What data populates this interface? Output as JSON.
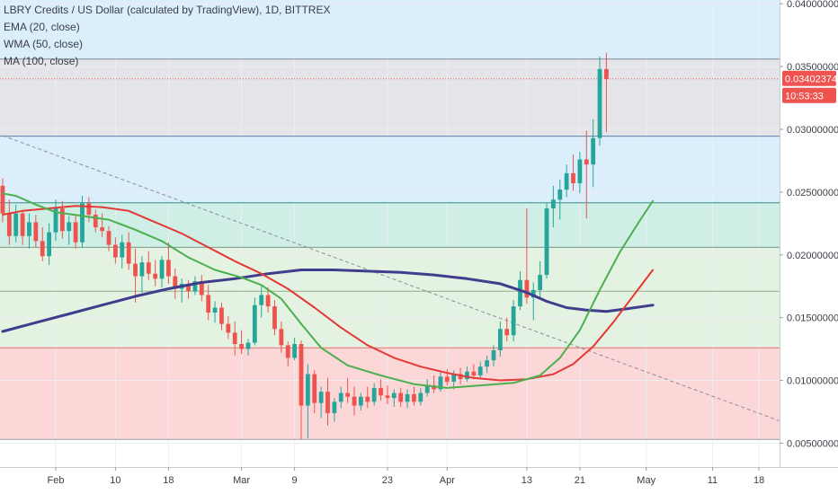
{
  "header": {
    "symbol_line": "LBRY Credits / US Dollar (calculated by TradingView), 1D, BITTREX",
    "indicators": [
      "EMA (20, close)",
      "WMA (50, close)",
      "MA (100, close)"
    ]
  },
  "price_label": {
    "value": "0.03402374",
    "countdown": "10:53:33",
    "color": "#ef5350"
  },
  "colors": {
    "up": "#26a69a",
    "down": "#ef5350",
    "ema": "#4caf50",
    "wma": "#e53935",
    "ma": "#3f3d8c",
    "zone_blue": "#dbeefc",
    "zone_gray": "#e4e5e8",
    "zone_teal": "#cfeee6",
    "zone_green": "#e3f2e1",
    "zone_red": "#fbd7d7",
    "grid": "#eceef2"
  },
  "chart_data": {
    "type": "candlestick",
    "title": "LBRY Credits / US Dollar (calculated by TradingView), 1D, BITTREX",
    "y_ticks": [
      "0.04000000",
      "0.03500000",
      "0.03000000",
      "0.02500000",
      "0.02000000",
      "0.01500000",
      "0.01000000",
      "0.00500000"
    ],
    "y_tick_values": [
      0.04,
      0.035,
      0.03,
      0.025,
      0.02,
      0.015,
      0.01,
      0.005
    ],
    "ylim": [
      0.0031,
      0.0403
    ],
    "x_ticks": [
      {
        "label": "Feb",
        "day": 31
      },
      {
        "label": "10",
        "day": 40
      },
      {
        "label": "18",
        "day": 48
      },
      {
        "label": "Mar",
        "day": 59
      },
      {
        "label": "9",
        "day": 67
      },
      {
        "label": "23",
        "day": 81
      },
      {
        "label": "Apr",
        "day": 90
      },
      {
        "label": "13",
        "day": 102
      },
      {
        "label": "21",
        "day": 110
      },
      {
        "label": "May",
        "day": 120
      },
      {
        "label": "11",
        "day": 130
      },
      {
        "label": "18",
        "day": 137
      }
    ],
    "start_day": 23,
    "x_range_days": [
      22.6,
      140.1
    ],
    "last_price": 0.03402374,
    "levels": [
      0.0356,
      0.02945,
      0.02415,
      0.0206,
      0.0171,
      0.0126,
      0.0053
    ],
    "zones": [
      {
        "from": 0.0356,
        "to": 0.0403,
        "color": "zone_blue"
      },
      {
        "from": 0.02945,
        "to": 0.0356,
        "color": "zone_gray"
      },
      {
        "from": 0.02415,
        "to": 0.02945,
        "color": "zone_blue"
      },
      {
        "from": 0.0206,
        "to": 0.02415,
        "color": "zone_teal"
      },
      {
        "from": 0.0126,
        "to": 0.0206,
        "color": "zone_green"
      },
      {
        "from": 0.0053,
        "to": 0.0126,
        "color": "zone_red"
      }
    ],
    "trendline": {
      "from_day": 23,
      "from_value": 0.0295,
      "to_day": 140,
      "to_value": 0.0068
    },
    "candles": [
      [
        0.0255,
        0.0261,
        0.0226,
        0.0233
      ],
      [
        0.0233,
        0.0244,
        0.0208,
        0.0215
      ],
      [
        0.0215,
        0.024,
        0.021,
        0.0233
      ],
      [
        0.0233,
        0.0236,
        0.0208,
        0.0215
      ],
      [
        0.0215,
        0.0233,
        0.0205,
        0.0226
      ],
      [
        0.0226,
        0.0232,
        0.0206,
        0.0211
      ],
      [
        0.0211,
        0.0222,
        0.0195,
        0.0199
      ],
      [
        0.0199,
        0.0225,
        0.0192,
        0.0218
      ],
      [
        0.0218,
        0.0244,
        0.0211,
        0.0237
      ],
      [
        0.0237,
        0.0243,
        0.0213,
        0.0219
      ],
      [
        0.0219,
        0.0231,
        0.0208,
        0.0226
      ],
      [
        0.0226,
        0.0232,
        0.0205,
        0.021
      ],
      [
        0.021,
        0.0247,
        0.0206,
        0.0241
      ],
      [
        0.0241,
        0.0246,
        0.0226,
        0.0232
      ],
      [
        0.0232,
        0.0236,
        0.0218,
        0.0222
      ],
      [
        0.0222,
        0.0233,
        0.0214,
        0.0219
      ],
      [
        0.0219,
        0.0223,
        0.0203,
        0.0208
      ],
      [
        0.0208,
        0.0214,
        0.0193,
        0.0198
      ],
      [
        0.0198,
        0.0216,
        0.0189,
        0.021
      ],
      [
        0.021,
        0.0218,
        0.0188,
        0.0193
      ],
      [
        0.0193,
        0.0205,
        0.0162,
        0.0183
      ],
      [
        0.0183,
        0.0199,
        0.017,
        0.0194
      ],
      [
        0.0194,
        0.0203,
        0.018,
        0.0185
      ],
      [
        0.0185,
        0.0196,
        0.0175,
        0.0181
      ],
      [
        0.0181,
        0.0199,
        0.0174,
        0.0196
      ],
      [
        0.0196,
        0.021,
        0.0177,
        0.0183
      ],
      [
        0.0183,
        0.0189,
        0.0165,
        0.0173
      ],
      [
        0.0173,
        0.0181,
        0.0162,
        0.0177
      ],
      [
        0.0177,
        0.018,
        0.0165,
        0.0171
      ],
      [
        0.0171,
        0.0183,
        0.0168,
        0.0179
      ],
      [
        0.0179,
        0.0184,
        0.0163,
        0.0168
      ],
      [
        0.0168,
        0.0176,
        0.0148,
        0.0154
      ],
      [
        0.0154,
        0.0163,
        0.0146,
        0.0158
      ],
      [
        0.0158,
        0.0162,
        0.014,
        0.0145
      ],
      [
        0.0145,
        0.0151,
        0.0133,
        0.0138
      ],
      [
        0.0138,
        0.0147,
        0.012,
        0.0129
      ],
      [
        0.0129,
        0.014,
        0.0121,
        0.0125
      ],
      [
        0.0125,
        0.0133,
        0.012,
        0.013
      ],
      [
        0.013,
        0.0166,
        0.0128,
        0.016
      ],
      [
        0.016,
        0.0175,
        0.015,
        0.0168
      ],
      [
        0.0168,
        0.0174,
        0.0154,
        0.0159
      ],
      [
        0.0159,
        0.0164,
        0.0136,
        0.0141
      ],
      [
        0.0141,
        0.0147,
        0.0122,
        0.0128
      ],
      [
        0.0128,
        0.0131,
        0.0111,
        0.0118
      ],
      [
        0.0118,
        0.0134,
        0.0116,
        0.0129
      ],
      [
        0.0129,
        0.0132,
        0.0053,
        0.008
      ],
      [
        0.008,
        0.0113,
        0.0054,
        0.0105
      ],
      [
        0.0105,
        0.0108,
        0.0074,
        0.0082
      ],
      [
        0.0082,
        0.0095,
        0.007,
        0.0091
      ],
      [
        0.0091,
        0.0102,
        0.0064,
        0.0074
      ],
      [
        0.0074,
        0.0086,
        0.0067,
        0.0083
      ],
      [
        0.0083,
        0.0095,
        0.0078,
        0.009
      ],
      [
        0.009,
        0.0102,
        0.0082,
        0.0087
      ],
      [
        0.0087,
        0.0095,
        0.0072,
        0.008
      ],
      [
        0.008,
        0.009,
        0.0076,
        0.0087
      ],
      [
        0.0087,
        0.0095,
        0.0078,
        0.0083
      ],
      [
        0.0083,
        0.0098,
        0.008,
        0.0094
      ],
      [
        0.0094,
        0.0101,
        0.0084,
        0.0088
      ],
      [
        0.0088,
        0.0096,
        0.0081,
        0.0086
      ],
      [
        0.0086,
        0.0093,
        0.0079,
        0.009
      ],
      [
        0.009,
        0.0094,
        0.0079,
        0.0083
      ],
      [
        0.0083,
        0.0093,
        0.0078,
        0.0089
      ],
      [
        0.0089,
        0.0095,
        0.008,
        0.0083
      ],
      [
        0.0083,
        0.0094,
        0.008,
        0.009
      ],
      [
        0.009,
        0.0101,
        0.0087,
        0.0096
      ],
      [
        0.0096,
        0.0104,
        0.009,
        0.0093
      ],
      [
        0.0093,
        0.0107,
        0.0091,
        0.0103
      ],
      [
        0.0103,
        0.0109,
        0.0096,
        0.0099
      ],
      [
        0.0099,
        0.0108,
        0.0093,
        0.0105
      ],
      [
        0.0105,
        0.011,
        0.0097,
        0.0101
      ],
      [
        0.0101,
        0.0111,
        0.0099,
        0.0107
      ],
      [
        0.0107,
        0.0113,
        0.0101,
        0.0104
      ],
      [
        0.0104,
        0.0115,
        0.0102,
        0.0111
      ],
      [
        0.0111,
        0.012,
        0.0106,
        0.0116
      ],
      [
        0.0116,
        0.0128,
        0.0111,
        0.0124
      ],
      [
        0.0124,
        0.0147,
        0.0119,
        0.0141
      ],
      [
        0.0141,
        0.015,
        0.0131,
        0.0136
      ],
      [
        0.0136,
        0.0164,
        0.0131,
        0.0159
      ],
      [
        0.0159,
        0.0187,
        0.0156,
        0.018
      ],
      [
        0.018,
        0.0237,
        0.0161,
        0.0166
      ],
      [
        0.0166,
        0.0178,
        0.0148,
        0.0172
      ],
      [
        0.0172,
        0.0195,
        0.0166,
        0.0184
      ],
      [
        0.0184,
        0.0241,
        0.0181,
        0.0237
      ],
      [
        0.0237,
        0.0255,
        0.0222,
        0.0244
      ],
      [
        0.0244,
        0.026,
        0.0228,
        0.0252
      ],
      [
        0.0252,
        0.0272,
        0.0246,
        0.0265
      ],
      [
        0.0265,
        0.028,
        0.0251,
        0.0257
      ],
      [
        0.0257,
        0.0282,
        0.0249,
        0.0276
      ],
      [
        0.0276,
        0.0299,
        0.0229,
        0.0272
      ],
      [
        0.0272,
        0.0308,
        0.0254,
        0.0293
      ],
      [
        0.0293,
        0.0358,
        0.0287,
        0.0348
      ],
      [
        0.0348,
        0.0361,
        0.0298,
        0.034
      ]
    ],
    "ema20": [
      [
        23,
        0.0249
      ],
      [
        25,
        0.0247
      ],
      [
        28,
        0.024
      ],
      [
        31,
        0.0234
      ],
      [
        35,
        0.0231
      ],
      [
        39,
        0.0228
      ],
      [
        43,
        0.022
      ],
      [
        47,
        0.0211
      ],
      [
        51,
        0.0198
      ],
      [
        55,
        0.0188
      ],
      [
        59,
        0.0182
      ],
      [
        62,
        0.0176
      ],
      [
        65,
        0.0165
      ],
      [
        68,
        0.0145
      ],
      [
        71,
        0.0126
      ],
      [
        75,
        0.0112
      ],
      [
        80,
        0.0104
      ],
      [
        85,
        0.0097
      ],
      [
        90,
        0.0094
      ],
      [
        95,
        0.0096
      ],
      [
        100,
        0.0098
      ],
      [
        104,
        0.0104
      ],
      [
        107,
        0.0118
      ],
      [
        110,
        0.014
      ],
      [
        113,
        0.0172
      ],
      [
        116,
        0.0202
      ],
      [
        119,
        0.0227
      ],
      [
        121,
        0.0243
      ]
    ],
    "wma50": [
      [
        23,
        0.0232
      ],
      [
        26,
        0.0235
      ],
      [
        30,
        0.0237
      ],
      [
        34,
        0.0239
      ],
      [
        38,
        0.0238
      ],
      [
        42,
        0.0235
      ],
      [
        46,
        0.0226
      ],
      [
        50,
        0.0217
      ],
      [
        54,
        0.0206
      ],
      [
        58,
        0.0195
      ],
      [
        62,
        0.0185
      ],
      [
        66,
        0.0173
      ],
      [
        70,
        0.0158
      ],
      [
        74,
        0.0142
      ],
      [
        78,
        0.0128
      ],
      [
        82,
        0.0118
      ],
      [
        86,
        0.0111
      ],
      [
        90,
        0.0106
      ],
      [
        94,
        0.0102
      ],
      [
        98,
        0.01
      ],
      [
        102,
        0.0101
      ],
      [
        106,
        0.0105
      ],
      [
        109,
        0.0113
      ],
      [
        112,
        0.0127
      ],
      [
        115,
        0.0146
      ],
      [
        118,
        0.0167
      ],
      [
        121,
        0.0188
      ]
    ],
    "ma100": [
      [
        23,
        0.0139
      ],
      [
        28,
        0.0146
      ],
      [
        33,
        0.0153
      ],
      [
        38,
        0.016
      ],
      [
        43,
        0.0167
      ],
      [
        48,
        0.0173
      ],
      [
        53,
        0.0178
      ],
      [
        58,
        0.0181
      ],
      [
        63,
        0.0185
      ],
      [
        68,
        0.0188
      ],
      [
        73,
        0.0188
      ],
      [
        78,
        0.0187
      ],
      [
        83,
        0.0186
      ],
      [
        88,
        0.0184
      ],
      [
        93,
        0.0181
      ],
      [
        98,
        0.0177
      ],
      [
        102,
        0.017
      ],
      [
        105,
        0.0163
      ],
      [
        108,
        0.0158
      ],
      [
        111,
        0.0156
      ],
      [
        114,
        0.0155
      ],
      [
        117,
        0.0157
      ],
      [
        121,
        0.016
      ]
    ]
  }
}
